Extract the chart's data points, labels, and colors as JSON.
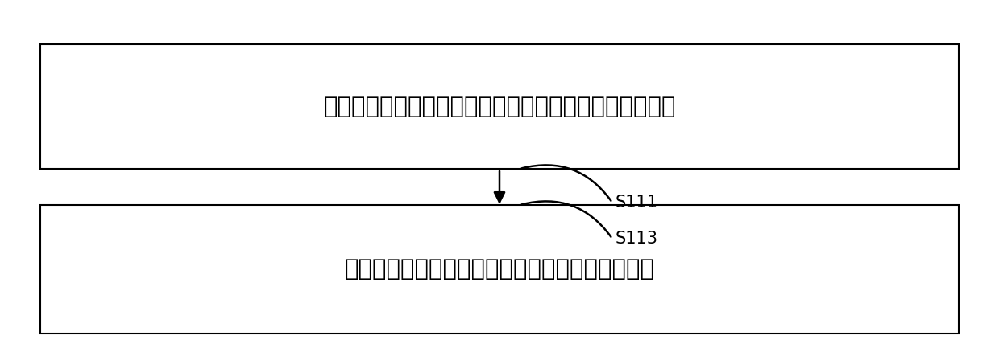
{
  "background_color": "#ffffff",
  "box1_text": "获取待测中子管在工作过程中的若干时刻的累计中子计数",
  "box2_text": "根据各累计中子计数，得到各时刻对应的中子产额",
  "label1": "S111",
  "label2": "S113",
  "box_edge_color": "#000000",
  "box_face_color": "#ffffff",
  "text_color": "#000000",
  "arrow_color": "#000000",
  "font_size": 21,
  "label_font_size": 15,
  "fig_width": 12.4,
  "fig_height": 4.28,
  "dpi": 100
}
